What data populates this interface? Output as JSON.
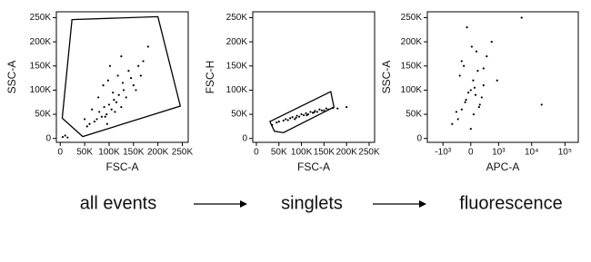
{
  "chart_data": [
    {
      "type": "scatter",
      "caption": "all events",
      "x_label": "FSC-A",
      "y_label": "SSC-A",
      "color": "#000000",
      "xlim": [
        -8000,
        262144
      ],
      "ylim": [
        -8000,
        262144
      ],
      "xticks": [
        0,
        {
          "value": 50000,
          "label": "50K"
        },
        {
          "value": 100000,
          "label": "100K"
        },
        {
          "value": 150000,
          "label": "150K"
        },
        {
          "value": 200000,
          "label": "200K"
        },
        {
          "value": 250000,
          "label": "250K"
        }
      ],
      "yticks": [
        0,
        {
          "value": 50000,
          "label": "50K"
        },
        {
          "value": 100000,
          "label": "100K"
        },
        {
          "value": 150000,
          "label": "150K"
        },
        {
          "value": 200000,
          "label": "200K"
        },
        {
          "value": 250000,
          "label": "250K"
        }
      ],
      "x": [
        60000,
        75000,
        80000,
        85000,
        90000,
        95000,
        100000,
        105000,
        110000,
        115000,
        120000,
        125000,
        130000,
        70000,
        88000,
        98000,
        108000,
        118000,
        135000,
        140000,
        150000,
        160000,
        170000,
        65000,
        55000,
        92000,
        102000,
        112000,
        125000,
        145000,
        180000,
        155000,
        50000,
        78000,
        96000,
        128000,
        165000,
        5000,
        10000,
        15000
      ],
      "y": [
        30000,
        40000,
        55000,
        45000,
        65000,
        50000,
        70000,
        60000,
        80000,
        75000,
        90000,
        65000,
        100000,
        35000,
        110000,
        120000,
        95000,
        130000,
        85000,
        140000,
        110000,
        150000,
        160000,
        60000,
        25000,
        45000,
        150000,
        55000,
        170000,
        125000,
        190000,
        100000,
        40000,
        85000,
        30000,
        115000,
        130000,
        3000,
        6000,
        2000
      ],
      "gate": {
        "x": [
          24000,
          200000,
          246000,
          46000,
          4000
        ],
        "y": [
          246000,
          252000,
          67000,
          4000,
          42000
        ]
      }
    },
    {
      "type": "scatter",
      "caption": "singlets",
      "x_label": "FSC-A",
      "y_label": "FSC-H",
      "color": "#000000",
      "xlim": [
        -8000,
        262144
      ],
      "ylim": [
        -8000,
        262144
      ],
      "xticks": [
        0,
        {
          "value": 50000,
          "label": "50K"
        },
        {
          "value": 100000,
          "label": "100K"
        },
        {
          "value": 150000,
          "label": "150K"
        },
        {
          "value": 200000,
          "label": "200K"
        },
        {
          "value": 250000,
          "label": "250K"
        }
      ],
      "yticks": [
        0,
        {
          "value": 50000,
          "label": "50K"
        },
        {
          "value": 100000,
          "label": "100K"
        },
        {
          "value": 150000,
          "label": "150K"
        },
        {
          "value": 200000,
          "label": "200K"
        },
        {
          "value": 250000,
          "label": "250K"
        }
      ],
      "x": [
        35000,
        45000,
        50000,
        60000,
        65000,
        70000,
        75000,
        80000,
        85000,
        90000,
        95000,
        100000,
        105000,
        110000,
        115000,
        120000,
        125000,
        130000,
        135000,
        140000,
        145000,
        150000,
        155000,
        160000,
        170000,
        180000,
        200000,
        88000,
        112000,
        128000
      ],
      "y": [
        28000,
        33000,
        35000,
        37000,
        40000,
        38000,
        42000,
        44000,
        40000,
        47000,
        45000,
        50000,
        48000,
        52000,
        50000,
        55000,
        53000,
        57000,
        55000,
        60000,
        58000,
        58000,
        62000,
        60000,
        63000,
        62000,
        65000,
        43000,
        48000,
        54000
      ],
      "gate": {
        "x": [
          30000,
          165000,
          172000,
          60000,
          40000
        ],
        "y": [
          35000,
          97000,
          65000,
          12000,
          15000
        ]
      }
    },
    {
      "type": "scatter",
      "caption": "fluorescence",
      "x_label": "APC-A",
      "y_label": "SSC-A",
      "color": "#000000",
      "xscale": "biexponential",
      "xlim": [
        -3000,
        250000
      ],
      "ylim": [
        -8000,
        262144
      ],
      "xticks": [
        {
          "value": -1000,
          "label": "-10³"
        },
        0,
        {
          "value": 1000,
          "label": "10³"
        },
        {
          "value": 10000,
          "label": "10⁴"
        },
        {
          "value": 100000,
          "label": "10⁵"
        }
      ],
      "yticks": [
        0,
        {
          "value": 50000,
          "label": "50K"
        },
        {
          "value": 100000,
          "label": "100K"
        },
        {
          "value": 150000,
          "label": "150K"
        },
        {
          "value": 200000,
          "label": "200K"
        },
        {
          "value": 250000,
          "label": "250K"
        }
      ],
      "x": [
        -300,
        -200,
        -100,
        0,
        100,
        200,
        300,
        -250,
        -150,
        50,
        150,
        250,
        -50,
        80,
        -120,
        180,
        400,
        -350,
        600,
        20,
        -80,
        120,
        -200,
        60,
        900,
        5000,
        20000,
        -500,
        300,
        0
      ],
      "y": [
        40000,
        60000,
        80000,
        100000,
        90000,
        70000,
        110000,
        130000,
        150000,
        120000,
        140000,
        85000,
        95000,
        105000,
        75000,
        65000,
        170000,
        55000,
        200000,
        190000,
        230000,
        180000,
        160000,
        50000,
        120000,
        250000,
        70000,
        30000,
        145000,
        20000
      ]
    }
  ]
}
